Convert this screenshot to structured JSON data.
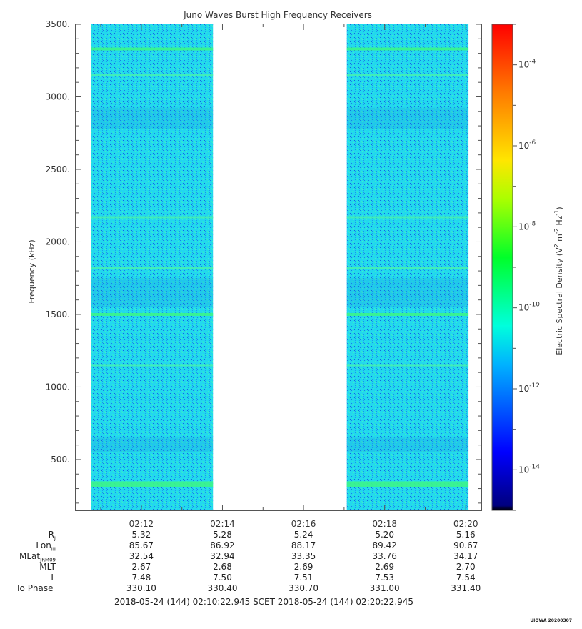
{
  "chart_data": {
    "type": "heatmap",
    "title": "Juno Waves Burst High Frequency Receivers",
    "ylabel": "Frequency (kHz)",
    "ylim": [
      150,
      3500
    ],
    "y_ticks": [
      "500.",
      "1000.",
      "1500.",
      "2000.",
      "2500.",
      "3000.",
      "3500."
    ],
    "y_tick_values": [
      500,
      1000,
      1500,
      2000,
      2500,
      3000,
      3500
    ],
    "x_tick_labels": [
      "02:12",
      "02:14",
      "02:16",
      "02:18",
      "02:20"
    ],
    "x_range": [
      "02:10:22.945",
      "02:20:22.945"
    ],
    "data_intervals": [
      [
        "02:10:46",
        "02:13:46"
      ],
      [
        "02:17:04",
        "02:20:04"
      ]
    ],
    "colorbar": {
      "label": "Electric Spectral Density",
      "unit_base": "V",
      "unit_exp1": "2",
      "unit_mid": " m",
      "unit_exp2": "-2",
      "unit_hz": " Hz",
      "unit_exp3": "-1",
      "scale": "log",
      "range": [
        1e-15,
        0.001
      ],
      "tick_base": "10",
      "ticks": [
        {
          "exp": "-4",
          "value": 0.0001
        },
        {
          "exp": "-6",
          "value": 1e-06
        },
        {
          "exp": "-8",
          "value": 1e-08
        },
        {
          "exp": "-10",
          "value": 1e-10
        },
        {
          "exp": "-12",
          "value": 1e-12
        },
        {
          "exp": "-14",
          "value": 1e-14
        }
      ]
    },
    "emission_bands_khz": [
      330,
      1150,
      1500,
      1820,
      2170,
      3150,
      3330
    ]
  },
  "ephemeris": {
    "rows": [
      {
        "label": "R",
        "sub": "J",
        "values": [
          "5.32",
          "5.28",
          "5.24",
          "5.20",
          "5.16"
        ]
      },
      {
        "label": "Lon",
        "sub": "III",
        "values": [
          "85.67",
          "86.92",
          "88.17",
          "89.42",
          "90.67"
        ]
      },
      {
        "label": "MLat",
        "sub": "JRM09",
        "values": [
          "32.54",
          "32.94",
          "33.35",
          "33.76",
          "34.17"
        ]
      },
      {
        "label": "MLT",
        "sub": "",
        "values": [
          "2.67",
          "2.68",
          "2.69",
          "2.69",
          "2.70"
        ]
      },
      {
        "label": "L",
        "sub": "",
        "values": [
          "7.48",
          "7.50",
          "7.51",
          "7.53",
          "7.54"
        ]
      },
      {
        "label": "Io Phase",
        "sub": "",
        "values": [
          "330.10",
          "330.40",
          "330.70",
          "331.00",
          "331.40"
        ]
      }
    ]
  },
  "time_range_text": "2018-05-24 (144) 02:10:22.945    SCET    2018-05-24 (144) 02:20:22.945",
  "footer_mark": "UIOWA 20200307"
}
